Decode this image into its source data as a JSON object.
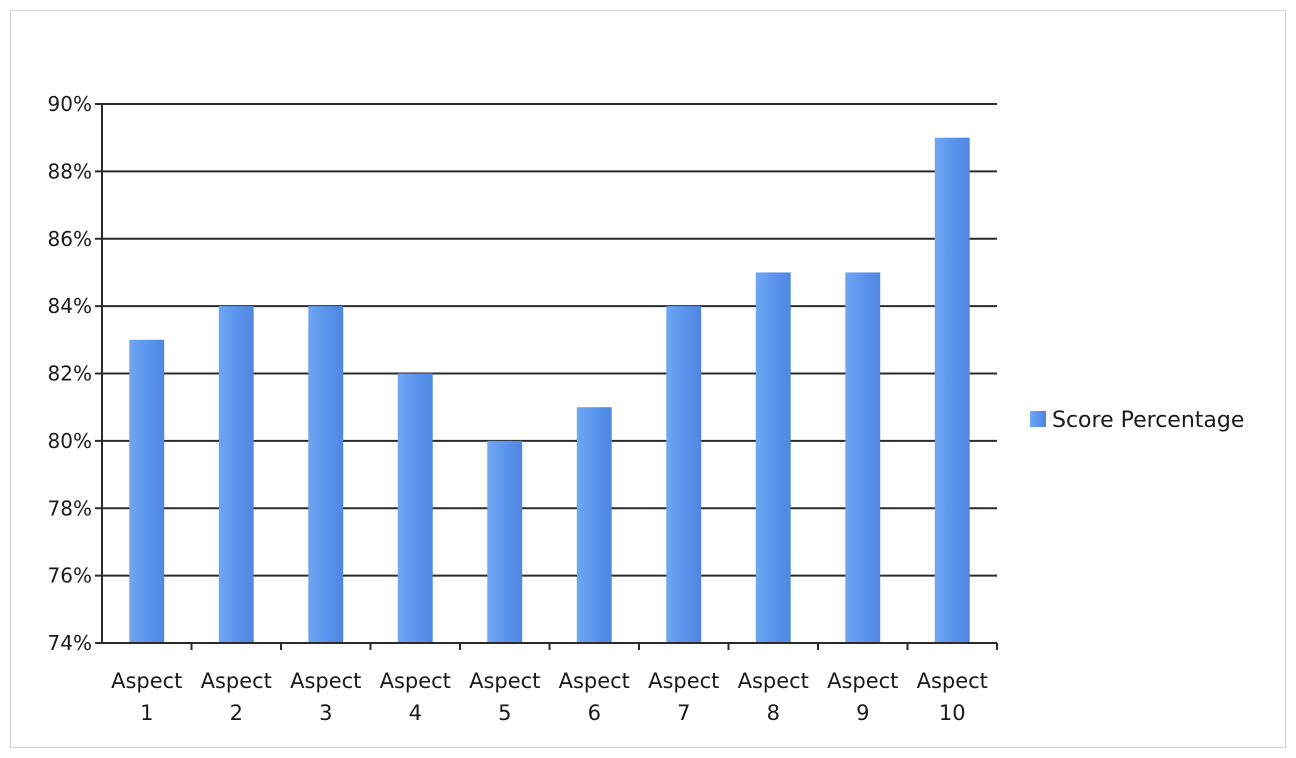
{
  "chart_data": {
    "type": "bar",
    "categories": [
      "Aspect 1",
      "Aspect 2",
      "Aspect 3",
      "Aspect 4",
      "Aspect 5",
      "Aspect 6",
      "Aspect 7",
      "Aspect 8",
      "Aspect 9",
      "Aspect 10"
    ],
    "series": [
      {
        "name": "Score Percentage",
        "values": [
          83,
          84,
          84,
          82,
          80,
          81,
          84,
          85,
          85,
          89
        ],
        "color": "#5b9bf0"
      }
    ],
    "ylim": [
      74,
      90
    ],
    "yticks": [
      74,
      76,
      78,
      80,
      82,
      84,
      86,
      88,
      90
    ],
    "ytick_suffix": "%",
    "grid": true,
    "legend_position": "right"
  }
}
